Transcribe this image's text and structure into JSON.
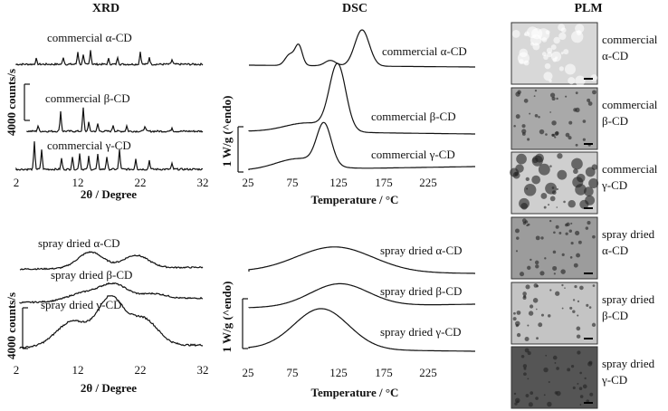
{
  "columns": [
    "XRD",
    "DSC",
    "PLM"
  ],
  "xrd": [
    {
      "curves": [
        "commercial α-CD",
        "commercial β-CD",
        "commercial γ-CD"
      ],
      "scale_label": "4000 counts/s",
      "xticks": [
        2,
        12,
        22,
        32
      ],
      "xlabel": "2θ / Degree"
    },
    {
      "curves": [
        "spray dried α-CD",
        "spray dried β-CD",
        "spray dried γ-CD"
      ],
      "scale_label": "4000 counts/s",
      "xticks": [
        2,
        12,
        22,
        32
      ],
      "xlabel": "2θ / Degree"
    }
  ],
  "dsc": [
    {
      "curves": [
        "commercial α-CD",
        "commercial β-CD",
        "commercial γ-CD"
      ],
      "scale_label": "1 W/g (^endo)",
      "xticks": [
        25,
        75,
        125,
        175,
        225
      ],
      "xlabel": "Temperature / °C"
    },
    {
      "curves": [
        "spray dried α-CD",
        "spray dried β-CD",
        "spray dried γ-CD"
      ],
      "scale_label": "1 W/g (^endo)",
      "xticks": [
        25,
        75,
        125,
        175,
        225
      ],
      "xlabel": "Temperature / °C"
    }
  ],
  "plm": [
    [
      "commercial",
      "α-CD"
    ],
    [
      "commercial",
      "β-CD"
    ],
    [
      "commercial",
      "γ-CD"
    ],
    [
      "spray dried",
      "α-CD"
    ],
    [
      "spray dried",
      "β-CD"
    ],
    [
      "spray dried",
      "γ-CD"
    ]
  ]
}
